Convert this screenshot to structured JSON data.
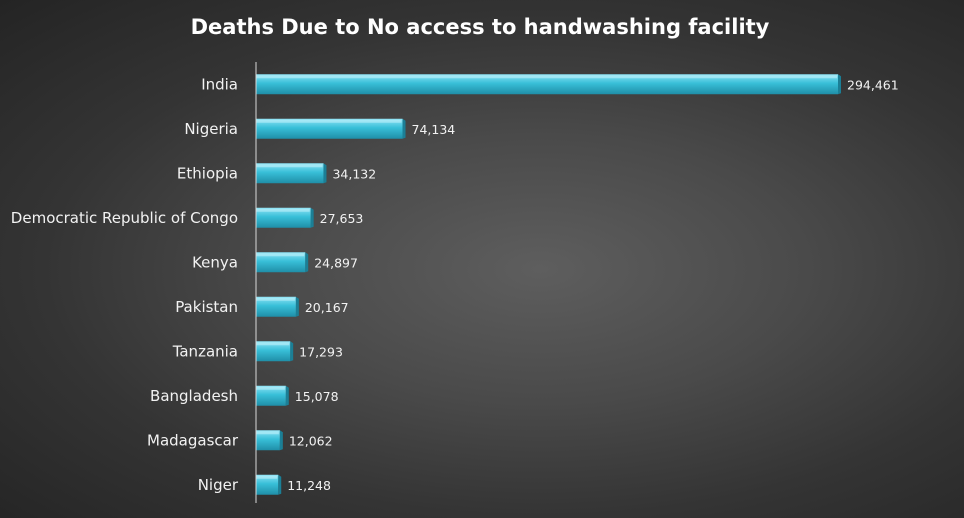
{
  "chart_data": {
    "type": "bar",
    "orientation": "horizontal",
    "title": "Deaths Due to No access to handwashing  facility",
    "categories": [
      "India",
      "Nigeria",
      "Ethiopia",
      "Democratic Republic of Congo",
      "Kenya",
      "Pakistan",
      "Tanzania",
      "Bangladesh",
      "Madagascar",
      "Niger"
    ],
    "values": [
      294461,
      74134,
      34132,
      27653,
      24897,
      20167,
      17293,
      15078,
      12062,
      11248
    ],
    "value_labels": [
      "294,461",
      "74,134",
      "34,132",
      "27,653",
      "24,897",
      "20,167",
      "17,293",
      "15,078",
      "12,062",
      "11,248"
    ],
    "xlabel": "",
    "ylabel": "",
    "grid": false,
    "legend": "none",
    "colors": {
      "bar_top": "#8fe3f5",
      "bar_mid": "#38bfd8",
      "bar_bottom": "#1f8fa8",
      "bar_side": "#1b7f96",
      "text": "#f2f2f2",
      "title": "#ffffff",
      "axis": "#d9d9d9"
    }
  }
}
